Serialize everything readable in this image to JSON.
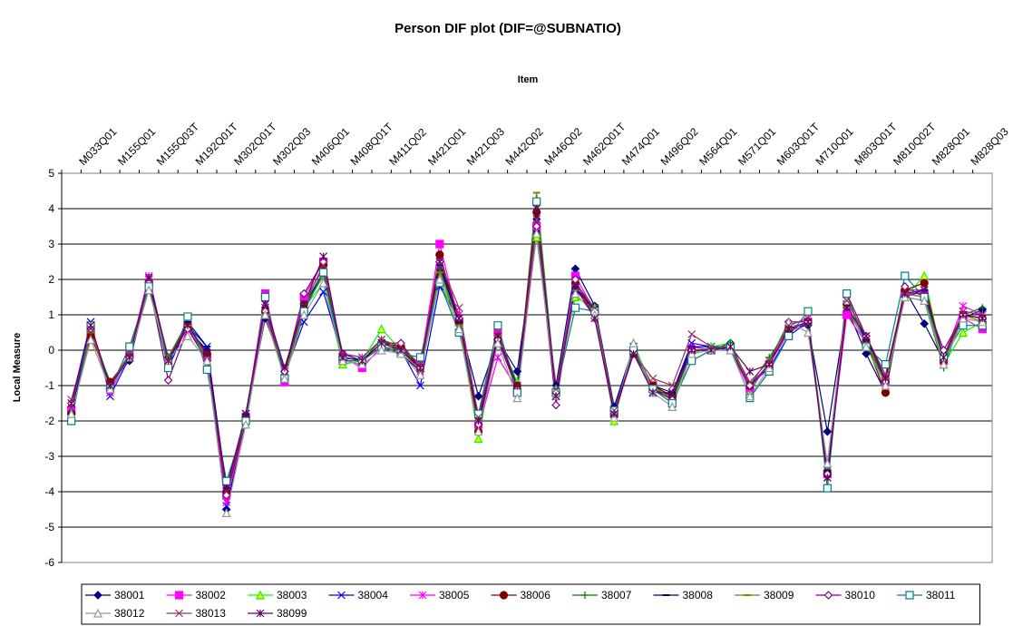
{
  "chart_data": {
    "type": "line",
    "title": "Person DIF plot (DIF=@SUBNATIO)",
    "x_label": "Item",
    "y_label": "Local Measure",
    "categories": [
      null,
      "M033Q01",
      null,
      "M155Q01",
      null,
      "M155Q03T",
      null,
      "M192Q01T",
      null,
      "M302Q01T",
      null,
      "M302Q03",
      null,
      "M406Q01",
      null,
      "M408Q01T",
      null,
      "M411Q02",
      null,
      "M421Q01",
      null,
      "M421Q03",
      null,
      "M442Q02",
      null,
      "M446Q02",
      null,
      "M462Q01T",
      null,
      "M474Q01",
      null,
      "M496Q02",
      null,
      "M564Q01",
      null,
      "M571Q01",
      null,
      "M603Q01T",
      null,
      "M710Q01",
      null,
      "M803Q01T",
      null,
      "M810Q02T",
      null,
      "M828Q01",
      null,
      "M828Q03"
    ],
    "ylim": [
      -6,
      5
    ],
    "yticks": [
      -6,
      -5,
      -4,
      -3,
      -2,
      -1,
      0,
      1,
      2,
      3,
      4,
      5
    ],
    "grid": true,
    "legend": "bottom",
    "series": [
      {
        "name": "38001",
        "color": "#000080",
        "marker": "diamond",
        "values": [
          -1.6,
          0.5,
          -0.9,
          -0.3,
          1.8,
          -0.2,
          0.6,
          0.0,
          -4.5,
          -1.9,
          0.9,
          -0.6,
          1.2,
          2.2,
          -0.1,
          -0.3,
          0.1,
          -0.1,
          -0.6,
          2.7,
          0.8,
          -1.3,
          0.3,
          -0.6,
          3.4,
          -1.0,
          2.3,
          1.25,
          -1.6,
          0.1,
          -1.1,
          -1.3,
          0.1,
          0.0,
          0.2,
          -1.0,
          -0.4,
          0.6,
          0.7,
          -2.3,
          1.2,
          -0.1,
          -1.2,
          1.7,
          0.75,
          -0.3,
          0.9,
          1.15
        ]
      },
      {
        "name": "38002",
        "color": "#ff00ff",
        "marker": "square",
        "values": [
          -1.7,
          0.5,
          -1.0,
          -0.1,
          1.9,
          -0.4,
          0.7,
          -0.2,
          -4.1,
          -1.9,
          1.6,
          -0.9,
          1.5,
          2.5,
          -0.2,
          -0.5,
          0.1,
          0.0,
          -0.4,
          3.0,
          0.8,
          -2.1,
          0.5,
          -1.2,
          3.5,
          -1.2,
          2.1,
          1.1,
          -1.8,
          0.0,
          -1.0,
          -1.4,
          0.0,
          0.0,
          0.1,
          -1.1,
          -0.4,
          0.5,
          0.8,
          -3.5,
          1.0,
          0.2,
          -0.9,
          1.6,
          1.6,
          -0.3,
          0.9,
          0.6
        ]
      },
      {
        "name": "38003",
        "color": "#00ff00",
        "marker": "triangle",
        "values": [
          -1.9,
          0.6,
          -0.9,
          -0.2,
          1.9,
          -0.2,
          0.8,
          -0.3,
          -4.0,
          -1.9,
          1.1,
          -0.6,
          1.2,
          1.9,
          -0.4,
          -0.3,
          0.6,
          0.0,
          -0.5,
          2.0,
          0.8,
          -2.5,
          0.4,
          -0.9,
          3.2,
          -1.1,
          1.5,
          1.2,
          -2.0,
          0.2,
          -1.1,
          -1.5,
          -0.1,
          0.1,
          0.2,
          -1.2,
          -0.3,
          0.8,
          0.8,
          -3.3,
          1.4,
          0.1,
          -0.9,
          1.5,
          2.1,
          -0.4,
          0.5,
          0.8
        ]
      },
      {
        "name": "38004",
        "color": "#0000ff",
        "marker": "x",
        "values": [
          -1.5,
          0.8,
          -1.3,
          -0.2,
          2.0,
          -0.5,
          0.7,
          0.1,
          -4.4,
          -1.8,
          1.2,
          -0.7,
          0.8,
          1.65,
          -0.2,
          -0.3,
          0.1,
          0.0,
          -1.0,
          1.8,
          0.9,
          -2.2,
          0.3,
          -1.1,
          3.8,
          -1.3,
          1.7,
          1.1,
          -1.7,
          0.1,
          -1.2,
          -1.2,
          0.2,
          0.1,
          0.0,
          -1.0,
          -0.5,
          0.4,
          0.8,
          -3.4,
          1.3,
          0.3,
          -0.8,
          1.5,
          1.7,
          -0.2,
          1.0,
          0.9
        ]
      },
      {
        "name": "38005",
        "color": "#ff00ff",
        "marker": "star",
        "values": [
          -1.6,
          0.6,
          -1.2,
          -0.1,
          2.1,
          -0.3,
          0.6,
          -0.2,
          -4.3,
          -2.0,
          1.3,
          -0.6,
          1.4,
          2.3,
          -0.1,
          -0.2,
          0.3,
          0.1,
          -0.6,
          2.4,
          1.0,
          -2.2,
          -0.2,
          -1.1,
          3.5,
          -1.3,
          1.8,
          1.0,
          -1.9,
          0.0,
          -1.0,
          -1.3,
          0.1,
          0.0,
          0.0,
          -1.1,
          -0.4,
          0.7,
          0.9,
          -3.5,
          1.2,
          0.3,
          -0.9,
          1.6,
          1.5,
          -0.2,
          1.25,
          1.0
        ]
      },
      {
        "name": "38006",
        "color": "#800000",
        "marker": "circle",
        "values": [
          -1.8,
          0.4,
          -0.9,
          -0.2,
          1.9,
          -0.4,
          0.7,
          -0.1,
          -4.0,
          -1.9,
          1.1,
          -0.8,
          1.3,
          2.4,
          -0.2,
          -0.3,
          0.2,
          0.1,
          -0.5,
          2.7,
          0.8,
          -2.3,
          0.3,
          -1.0,
          3.9,
          -1.2,
          1.9,
          1.1,
          -1.8,
          -0.1,
          -1.0,
          -1.3,
          0.0,
          0.0,
          0.1,
          -1.0,
          -0.4,
          0.6,
          0.8,
          -3.5,
          1.3,
          0.2,
          -1.2,
          1.7,
          1.9,
          -0.3,
          1.0,
          0.9
        ]
      },
      {
        "name": "38007",
        "color": "#008000",
        "marker": "plus",
        "values": [
          -1.7,
          0.5,
          -1.0,
          -0.1,
          1.8,
          -0.2,
          0.8,
          -0.2,
          -3.9,
          -1.9,
          1.2,
          -0.6,
          1.3,
          2.2,
          -0.2,
          -0.3,
          0.3,
          0.0,
          -0.4,
          2.3,
          0.8,
          -2.0,
          0.4,
          -1.1,
          3.3,
          -1.2,
          1.7,
          1.1,
          -1.9,
          0.1,
          -1.1,
          -1.3,
          0.0,
          0.0,
          0.2,
          -1.0,
          -0.2,
          0.6,
          0.8,
          -3.3,
          1.3,
          0.2,
          -0.9,
          1.5,
          1.4,
          -0.5,
          1.0,
          1.2
        ]
      },
      {
        "name": "38008",
        "color": "#000080",
        "marker": "dash",
        "values": [
          -1.8,
          0.6,
          -1.1,
          -0.2,
          1.9,
          -0.3,
          0.8,
          0.1,
          -3.9,
          -1.8,
          1.2,
          -0.6,
          1.2,
          2.2,
          -0.2,
          -0.3,
          0.2,
          0.0,
          -0.5,
          2.4,
          0.8,
          -2.0,
          0.3,
          -1.1,
          3.7,
          -1.1,
          1.8,
          1.1,
          -1.7,
          0.0,
          -1.0,
          -1.2,
          0.1,
          0.1,
          0.1,
          -1.0,
          -0.4,
          0.6,
          0.8,
          -3.4,
          1.3,
          0.3,
          -0.8,
          1.6,
          1.7,
          -0.3,
          1.0,
          0.9
        ]
      },
      {
        "name": "38009",
        "color": "#808000",
        "marker": "dash",
        "values": [
          -1.9,
          0.5,
          -1.0,
          -0.2,
          1.8,
          -0.3,
          0.7,
          -0.2,
          -4.1,
          -2.0,
          1.1,
          -0.7,
          1.2,
          2.1,
          -0.3,
          -0.3,
          0.1,
          0.0,
          -0.6,
          2.2,
          0.7,
          -2.0,
          0.4,
          -1.2,
          4.45,
          -1.2,
          1.7,
          1.1,
          -1.8,
          0.0,
          -1.0,
          -1.4,
          0.0,
          0.0,
          0.1,
          -1.0,
          -0.4,
          0.6,
          0.8,
          -3.3,
          1.2,
          0.2,
          -0.8,
          1.6,
          1.5,
          -0.3,
          1.0,
          0.8
        ]
      },
      {
        "name": "38010",
        "color": "#800080",
        "marker": "open-diamond",
        "values": [
          -1.5,
          0.6,
          -1.0,
          -0.2,
          1.9,
          -0.85,
          0.6,
          -0.3,
          -4.1,
          -2.0,
          1.1,
          -0.6,
          1.6,
          2.5,
          -0.2,
          -0.3,
          0.2,
          0.2,
          -0.5,
          2.5,
          0.9,
          -2.1,
          0.3,
          -1.1,
          3.5,
          -1.55,
          2.0,
          0.9,
          -1.8,
          0.0,
          -1.1,
          -1.4,
          0.0,
          0.0,
          0.0,
          -1.0,
          -0.4,
          0.8,
          0.8,
          -3.5,
          1.6,
          0.4,
          -0.9,
          1.8,
          1.5,
          0.0,
          1.0,
          0.9
        ]
      },
      {
        "name": "38011",
        "color": "#008080",
        "marker": "open-square",
        "values": [
          -2.0,
          0.7,
          -1.1,
          0.1,
          1.8,
          -0.5,
          0.95,
          -0.55,
          -3.7,
          -2.0,
          1.5,
          -0.8,
          1.1,
          2.2,
          -0.3,
          -0.3,
          0.1,
          -0.1,
          -0.2,
          1.9,
          0.5,
          -1.8,
          0.7,
          -1.2,
          4.2,
          -1.2,
          1.2,
          1.1,
          -1.7,
          0.0,
          -1.1,
          -1.5,
          -0.3,
          0.0,
          0.1,
          -1.35,
          -0.6,
          0.4,
          1.1,
          -3.9,
          1.6,
          0.1,
          -0.4,
          2.1,
          1.5,
          -0.2,
          0.7,
          0.7
        ]
      },
      {
        "name": "38012",
        "color": "#999999",
        "marker": "open-triangle",
        "values": [
          -1.8,
          0.3,
          -1.1,
          -0.2,
          1.7,
          -0.3,
          0.4,
          -0.3,
          -4.6,
          -2.1,
          1.0,
          -0.8,
          1.0,
          1.9,
          -0.3,
          -0.4,
          0.0,
          -0.1,
          -0.7,
          2.0,
          0.6,
          -2.3,
          0.2,
          -1.35,
          3.3,
          -1.3,
          1.6,
          1.0,
          -1.9,
          0.2,
          -1.2,
          -1.6,
          -0.1,
          0.0,
          0.0,
          -1.3,
          -0.5,
          0.8,
          0.5,
          -3.2,
          1.4,
          0.1,
          -1.0,
          1.5,
          1.4,
          -0.4,
          0.9,
          0.8
        ]
      },
      {
        "name": "38013",
        "color": "#993366",
        "marker": "x",
        "values": [
          -1.4,
          0.6,
          -1.0,
          -0.1,
          2.0,
          -0.2,
          0.7,
          -0.1,
          -4.0,
          -1.8,
          1.2,
          -0.5,
          1.3,
          2.4,
          -0.1,
          -0.2,
          0.3,
          0.1,
          -0.4,
          2.5,
          1.2,
          -1.9,
          0.5,
          -1.0,
          3.7,
          -1.1,
          1.9,
          1.2,
          -1.7,
          -0.1,
          -0.8,
          -1.0,
          0.45,
          0.1,
          0.1,
          -0.9,
          -0.3,
          0.7,
          0.9,
          -3.6,
          1.4,
          0.4,
          -0.7,
          1.7,
          1.7,
          -0.2,
          1.1,
          1.0
        ]
      },
      {
        "name": "38099",
        "color": "#660066",
        "marker": "star",
        "values": [
          -1.5,
          0.7,
          -1.0,
          -0.2,
          2.05,
          -0.3,
          0.7,
          -0.1,
          -3.9,
          -1.8,
          1.3,
          -0.5,
          1.3,
          2.65,
          -0.2,
          -0.3,
          0.2,
          0.0,
          -0.5,
          2.5,
          0.9,
          -2.0,
          0.4,
          -1.0,
          4.0,
          -1.3,
          1.8,
          0.9,
          -1.8,
          -0.1,
          -1.2,
          -1.2,
          0.0,
          0.0,
          0.1,
          -0.6,
          -0.4,
          0.6,
          0.8,
          -3.6,
          1.2,
          0.4,
          -0.8,
          1.6,
          1.7,
          -0.2,
          1.0,
          0.9
        ]
      }
    ]
  }
}
